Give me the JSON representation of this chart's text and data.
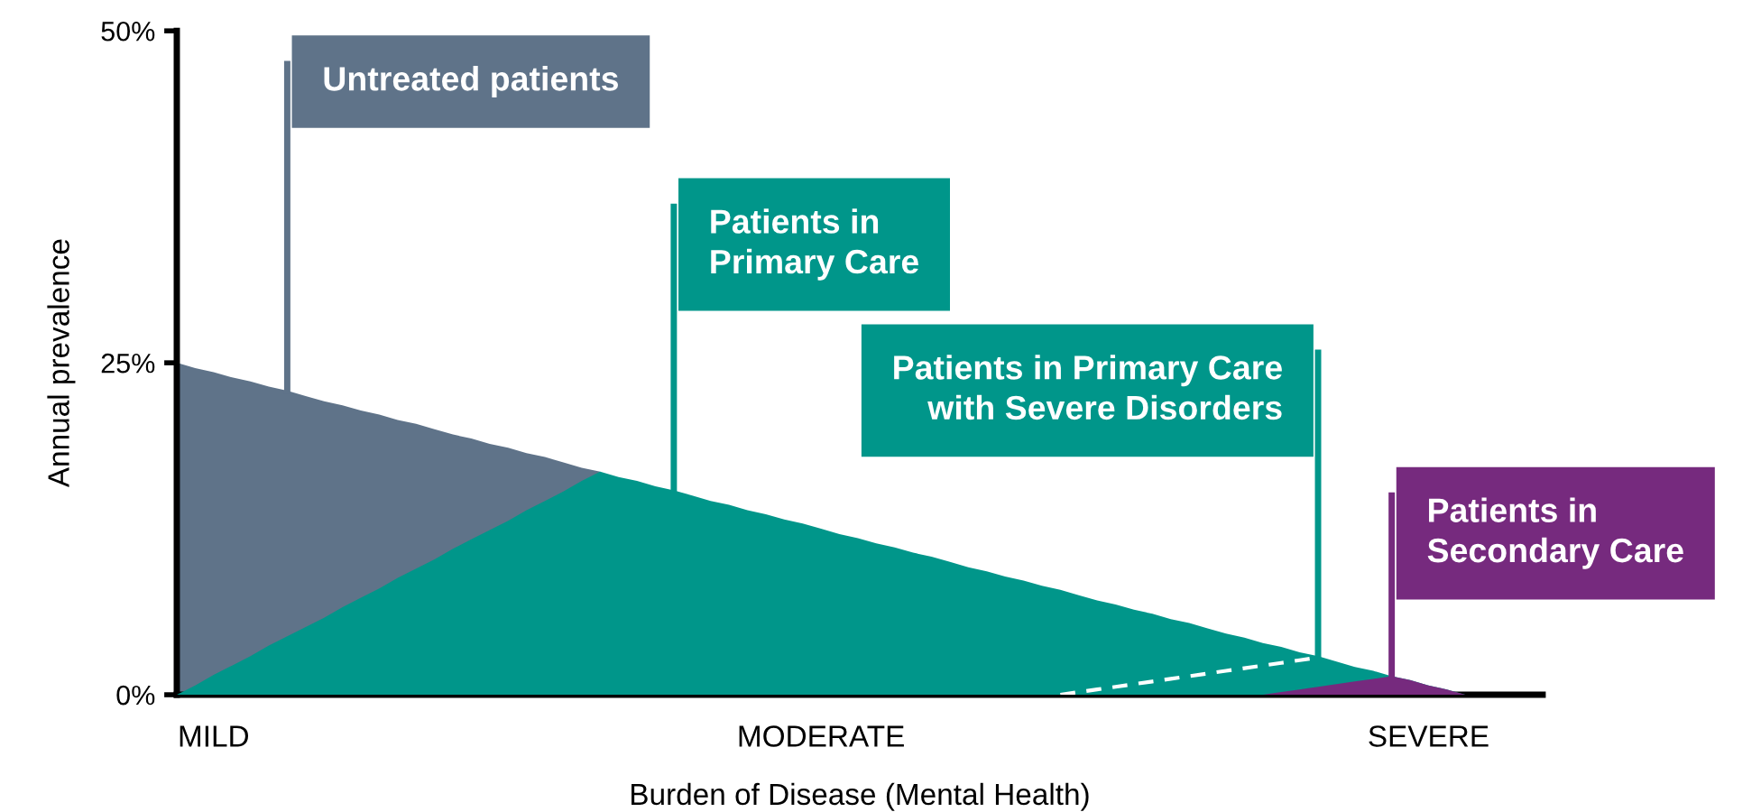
{
  "chart_data": {
    "type": "area",
    "xlabel": "Burden of Disease (Mental Health)",
    "ylabel": "Annual prevalence",
    "categories": [
      null,
      null,
      "MILD",
      null,
      null,
      null,
      null,
      null,
      null,
      null,
      null,
      null,
      null,
      null,
      null,
      null,
      null,
      null,
      null,
      null,
      null,
      null,
      null,
      null,
      null,
      null,
      null,
      null,
      null,
      null,
      null,
      null,
      null,
      null,
      null,
      "MODERATE",
      null,
      null,
      null,
      null,
      null,
      null,
      null,
      null,
      null,
      null,
      null,
      null,
      null,
      null,
      null,
      null,
      null,
      null,
      null,
      null,
      null,
      null,
      null,
      null,
      null,
      null,
      null,
      null,
      null,
      null,
      null,
      null,
      "SEVERE",
      null,
      null
    ],
    "ylim": [
      0,
      50
    ],
    "yticks": [
      {
        "value": 0,
        "label": "0%"
      },
      {
        "value": 25,
        "label": "25%"
      },
      {
        "value": 50,
        "label": "50%"
      }
    ],
    "grid": false,
    "legend": false,
    "series": [
      {
        "name": "Untreated patients",
        "color": "#5f7389",
        "values": [
          25.0,
          24.6,
          24.3,
          23.9,
          23.6,
          23.2,
          22.9,
          22.5,
          22.1,
          21.8,
          21.4,
          21.1,
          20.7,
          20.4,
          20.0,
          19.6,
          19.3,
          18.9,
          18.6,
          18.2,
          17.9,
          17.5,
          17.1,
          16.8,
          null,
          null,
          null,
          null,
          null,
          null,
          null,
          null,
          null,
          null,
          null,
          null,
          null,
          null,
          null,
          null,
          null,
          null,
          null,
          null,
          null,
          null,
          null,
          null,
          null,
          null,
          null,
          null,
          null,
          null,
          null,
          null,
          null,
          null,
          null,
          null,
          null,
          null,
          null,
          null,
          null,
          null,
          null,
          null,
          null,
          null,
          null
        ]
      },
      {
        "name": "Patients in\nPrimary Care",
        "color": "#00968a",
        "values": [
          0,
          0.7,
          1.5,
          2.2,
          2.9,
          3.7,
          4.4,
          5.1,
          5.8,
          6.6,
          7.3,
          8.0,
          8.8,
          9.5,
          10.2,
          11.0,
          11.7,
          12.4,
          13.1,
          13.9,
          14.6,
          15.3,
          16.1,
          16.8,
          16.4,
          16.1,
          15.7,
          15.4,
          15.0,
          14.6,
          14.3,
          13.9,
          13.6,
          13.2,
          12.9,
          12.5,
          12.1,
          11.8,
          11.4,
          11.1,
          10.7,
          10.4,
          10.0,
          9.6,
          9.3,
          8.9,
          8.6,
          8.2,
          7.9,
          7.5,
          7.1,
          6.8,
          6.4,
          6.1,
          5.7,
          5.4,
          5.0,
          4.6,
          4.3,
          3.9,
          3.6,
          3.2,
          2.9,
          2.5,
          2.1,
          1.8,
          1.4,
          1.1,
          0.7,
          0.4,
          0
        ]
      },
      {
        "name": "Patients in Primary Care\nwith Severe Disorders",
        "type": "line",
        "line_style": "dashed",
        "color": "#ffffff",
        "values": [
          null,
          null,
          null,
          null,
          null,
          null,
          null,
          null,
          null,
          null,
          null,
          null,
          null,
          null,
          null,
          null,
          null,
          null,
          null,
          null,
          null,
          null,
          null,
          null,
          null,
          null,
          null,
          null,
          null,
          null,
          null,
          null,
          null,
          null,
          null,
          null,
          null,
          null,
          null,
          null,
          null,
          null,
          null,
          null,
          null,
          null,
          null,
          null,
          0,
          0.2,
          0.4,
          0.6,
          0.8,
          1.0,
          1.2,
          1.4,
          1.6,
          1.8,
          2.0,
          2.2,
          2.4,
          2.6,
          2.8,
          null,
          null,
          null,
          null,
          null,
          null,
          null,
          null
        ]
      },
      {
        "name": "Patients in\nSecondary Care",
        "color": "#762a7e",
        "values": [
          null,
          null,
          null,
          null,
          null,
          null,
          null,
          null,
          null,
          null,
          null,
          null,
          null,
          null,
          null,
          null,
          null,
          null,
          null,
          null,
          null,
          null,
          null,
          null,
          null,
          null,
          null,
          null,
          null,
          null,
          null,
          null,
          null,
          null,
          null,
          null,
          null,
          null,
          null,
          null,
          null,
          null,
          null,
          null,
          null,
          null,
          null,
          null,
          null,
          null,
          null,
          null,
          null,
          null,
          null,
          null,
          null,
          null,
          null,
          0,
          0.2,
          0.4,
          0.6,
          0.8,
          1.0,
          1.2,
          1.4,
          1.1,
          0.7,
          0.4,
          0
        ]
      }
    ]
  }
}
